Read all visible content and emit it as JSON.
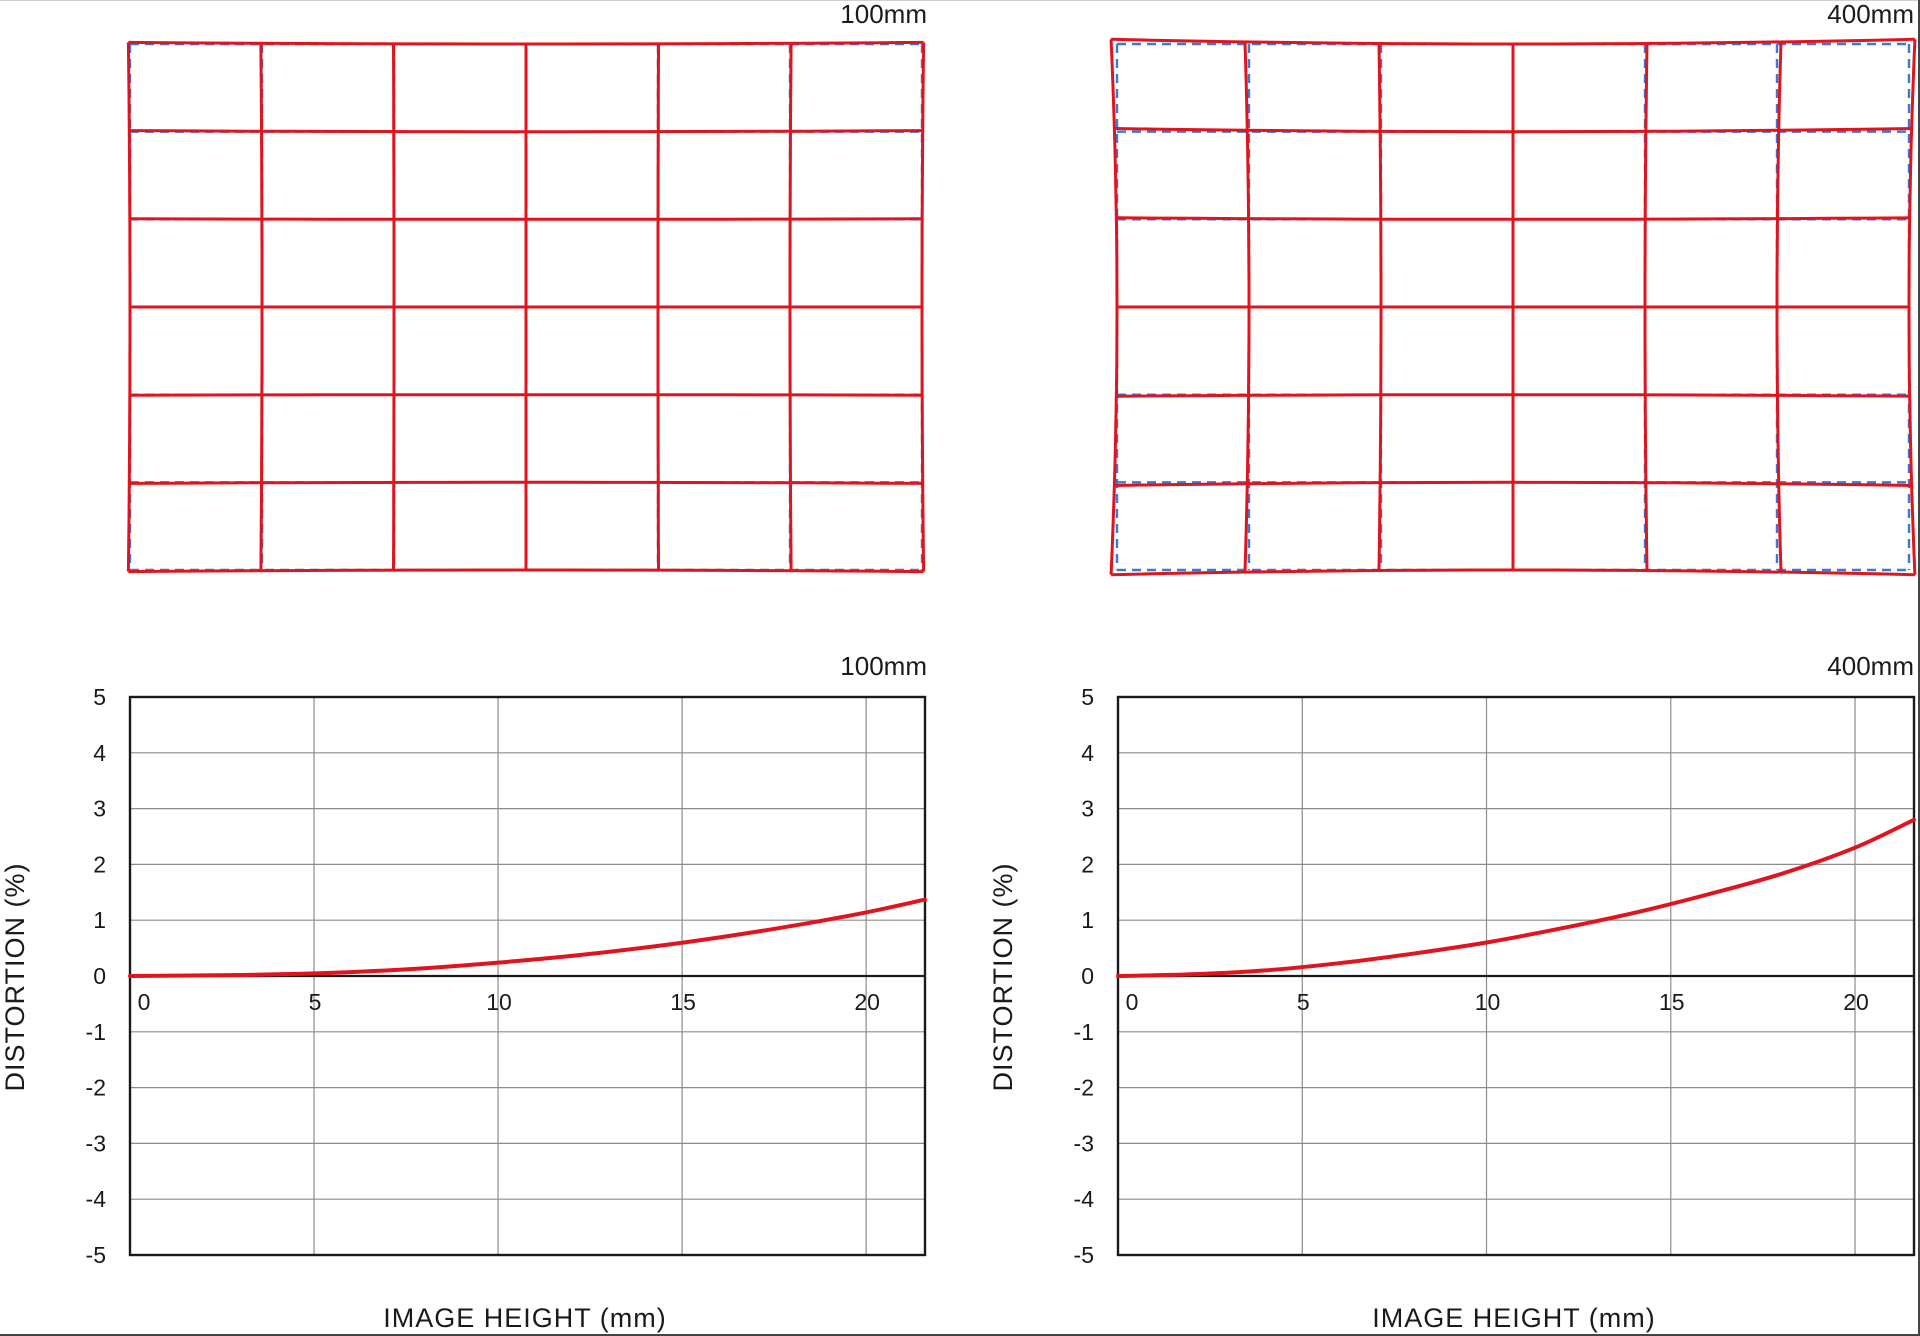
{
  "colors": {
    "actual": "#e0141e",
    "ideal": "#3b78d8",
    "axis": "#1a1a1a",
    "grid": "#8c8c8c"
  },
  "grid_charts": [
    {
      "focal": "100mm",
      "x_distortion_pct": 0.4,
      "y_distortion_pct": 0.6
    },
    {
      "focal": "400mm",
      "x_distortion_pct": 1.5,
      "y_distortion_pct": 1.8
    }
  ],
  "chart_data": [
    {
      "type": "line",
      "title": "100mm",
      "xlabel": "IMAGE HEIGHT (mm)",
      "ylabel": "DISTORTION (%)",
      "xlim": [
        0,
        21.6
      ],
      "ylim": [
        -5,
        5
      ],
      "xticks": [
        0,
        5,
        10,
        15,
        20
      ],
      "yticks": [
        5,
        4,
        3,
        2,
        1,
        0,
        -1,
        -2,
        -3,
        -4,
        -5
      ],
      "grid": true,
      "series": [
        {
          "x": [
            0,
            2,
            4,
            6,
            8,
            10,
            12,
            14,
            16,
            18,
            20,
            21.6
          ],
          "y": [
            0,
            0.01,
            0.03,
            0.07,
            0.14,
            0.24,
            0.36,
            0.51,
            0.69,
            0.9,
            1.14,
            1.37
          ]
        }
      ]
    },
    {
      "type": "line",
      "title": "400mm",
      "xlabel": "IMAGE HEIGHT (mm)",
      "ylabel": "DISTORTION (%)",
      "xlim": [
        0,
        21.6
      ],
      "ylim": [
        -5,
        5
      ],
      "xticks": [
        0,
        5,
        10,
        15,
        20
      ],
      "yticks": [
        5,
        4,
        3,
        2,
        1,
        0,
        -1,
        -2,
        -3,
        -4,
        -5
      ],
      "grid": true,
      "series": [
        {
          "x": [
            0,
            2,
            4,
            6,
            8,
            10,
            12,
            14,
            16,
            18,
            20,
            21.6
          ],
          "y": [
            0,
            0.03,
            0.1,
            0.23,
            0.4,
            0.6,
            0.85,
            1.13,
            1.46,
            1.83,
            2.3,
            2.8
          ]
        }
      ]
    }
  ]
}
